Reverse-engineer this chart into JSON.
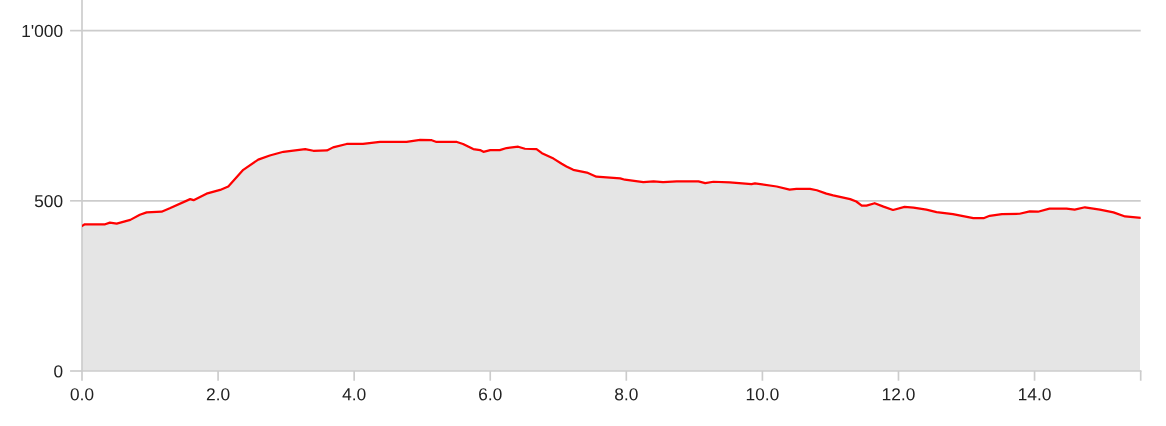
{
  "chart_data": {
    "type": "area",
    "x": [
      0,
      0.04,
      0.34,
      0.41,
      0.51,
      0.71,
      0.85,
      0.95,
      1.17,
      1.29,
      1.59,
      1.64,
      1.83,
      2.03,
      2.15,
      2.37,
      2.59,
      2.76,
      2.96,
      3.28,
      3.4,
      3.6,
      3.69,
      3.89,
      4.13,
      4.38,
      4.77,
      4.97,
      5.14,
      5.21,
      5.51,
      5.6,
      5.75,
      5.85,
      5.9,
      6.0,
      6.14,
      6.24,
      6.41,
      6.51,
      6.68,
      6.76,
      6.93,
      7.05,
      7.12,
      7.22,
      7.42,
      7.56,
      7.91,
      7.98,
      8.25,
      8.4,
      8.54,
      8.74,
      9.06,
      9.16,
      9.28,
      9.52,
      9.84,
      9.89,
      10.21,
      10.4,
      10.5,
      10.7,
      10.8,
      10.94,
      11.04,
      11.29,
      11.38,
      11.46,
      11.53,
      11.65,
      11.78,
      11.92,
      12.09,
      12.22,
      12.41,
      12.56,
      12.8,
      13.1,
      13.25,
      13.34,
      13.52,
      13.78,
      13.93,
      14.05,
      14.22,
      14.47,
      14.59,
      14.74,
      14.96,
      15.16,
      15.33,
      15.55
    ],
    "series": [
      {
        "color": "#ff0000",
        "values": [
          426,
          431,
          431,
          436,
          433,
          444,
          459,
          466,
          468,
          478,
          505,
          502,
          521,
          532,
          542,
          591,
          621,
          633,
          644,
          652,
          647,
          648,
          657,
          667,
          667,
          673,
          673,
          679,
          678,
          673,
          673,
          667,
          652,
          649,
          644,
          649,
          649,
          655,
          659,
          653,
          652,
          640,
          624,
          609,
          601,
          591,
          583,
          571,
          566,
          562,
          555,
          557,
          555,
          557,
          557,
          552,
          556,
          554,
          549,
          551,
          542,
          533,
          535,
          535,
          531,
          521,
          516,
          505,
          498,
          486,
          486,
          493,
          483,
          473,
          482,
          480,
          474,
          467,
          461,
          449,
          449,
          456,
          461,
          462,
          469,
          468,
          477,
          477,
          474,
          481,
          474,
          466,
          454,
          450
        ]
      }
    ],
    "xlim": [
      0,
      15.56
    ],
    "xticks": [
      {
        "value": 0,
        "label": "0.0"
      },
      {
        "value": 2,
        "label": "2.0"
      },
      {
        "value": 4,
        "label": "4.0"
      },
      {
        "value": 6,
        "label": "6.0"
      },
      {
        "value": 8,
        "label": "8.0"
      },
      {
        "value": 10,
        "label": "10.0"
      },
      {
        "value": 12,
        "label": "12.0"
      },
      {
        "value": 14,
        "label": "14.0"
      },
      {
        "value": 15.56,
        "label": null
      }
    ],
    "ylim": [
      0,
      1090
    ],
    "yticks": [
      0,
      500,
      {
        "value": 1000,
        "label": "1'000"
      }
    ],
    "grid": "y",
    "line_style": "solid",
    "marker": "none"
  }
}
